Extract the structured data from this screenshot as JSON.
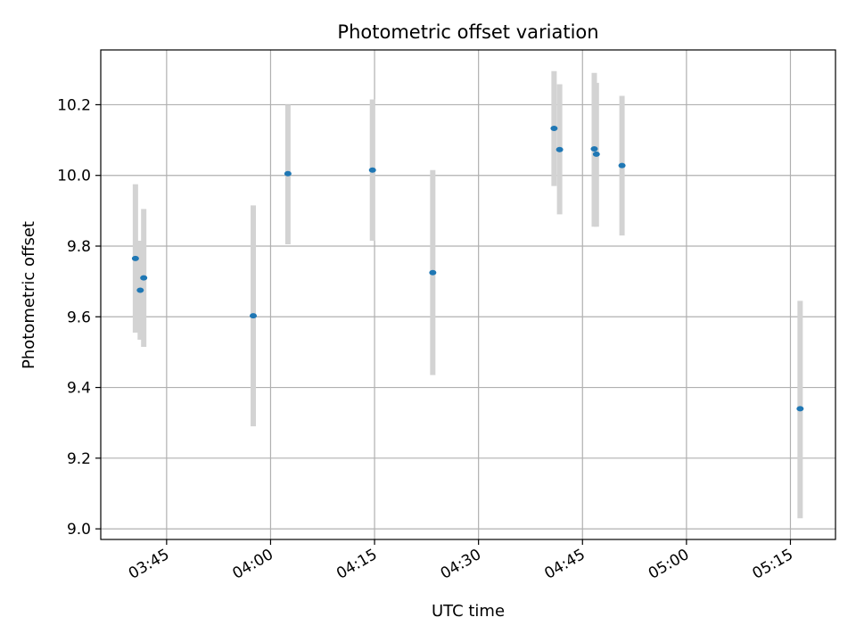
{
  "chart_data": {
    "type": "scatter",
    "title": "Photometric offset variation",
    "xlabel": "UTC time",
    "ylabel": "Photometric offset",
    "xlim": [
      "03:35:30",
      "05:21:30"
    ],
    "ylim": [
      8.97,
      10.355
    ],
    "grid": true,
    "x_ticks": [
      "03:45",
      "04:00",
      "04:15",
      "04:30",
      "04:45",
      "05:00",
      "05:15"
    ],
    "y_ticks": [
      "9.0",
      "9.2",
      "9.4",
      "9.6",
      "9.8",
      "10.0",
      "10.2"
    ],
    "colors": {
      "point": "#1f77b4",
      "error": "#d3d3d3",
      "grid": "#b0b0b0",
      "axes": "#000000"
    },
    "points": [
      {
        "t": "03:40:30",
        "y": 9.765,
        "err_low": 9.555,
        "err_high": 9.975
      },
      {
        "t": "03:41:12",
        "y": 9.675,
        "err_low": 9.535,
        "err_high": 9.815
      },
      {
        "t": "03:41:42",
        "y": 9.71,
        "err_low": 9.515,
        "err_high": 9.905
      },
      {
        "t": "03:57:30",
        "y": 9.603,
        "err_low": 9.29,
        "err_high": 9.915
      },
      {
        "t": "04:02:30",
        "y": 10.005,
        "err_low": 9.805,
        "err_high": 10.2
      },
      {
        "t": "04:14:42",
        "y": 10.015,
        "err_low": 9.815,
        "err_high": 10.215
      },
      {
        "t": "04:23:24",
        "y": 9.725,
        "err_low": 9.435,
        "err_high": 10.015
      },
      {
        "t": "04:40:54",
        "y": 10.133,
        "err_low": 9.97,
        "err_high": 10.295
      },
      {
        "t": "04:41:42",
        "y": 10.073,
        "err_low": 9.89,
        "err_high": 10.258
      },
      {
        "t": "04:46:42",
        "y": 10.075,
        "err_low": 9.855,
        "err_high": 10.29
      },
      {
        "t": "04:47:00",
        "y": 10.06,
        "err_low": 9.855,
        "err_high": 10.262
      },
      {
        "t": "04:50:42",
        "y": 10.028,
        "err_low": 9.83,
        "err_high": 10.225
      },
      {
        "t": "05:16:24",
        "y": 9.34,
        "err_low": 9.03,
        "err_high": 9.645
      }
    ]
  }
}
